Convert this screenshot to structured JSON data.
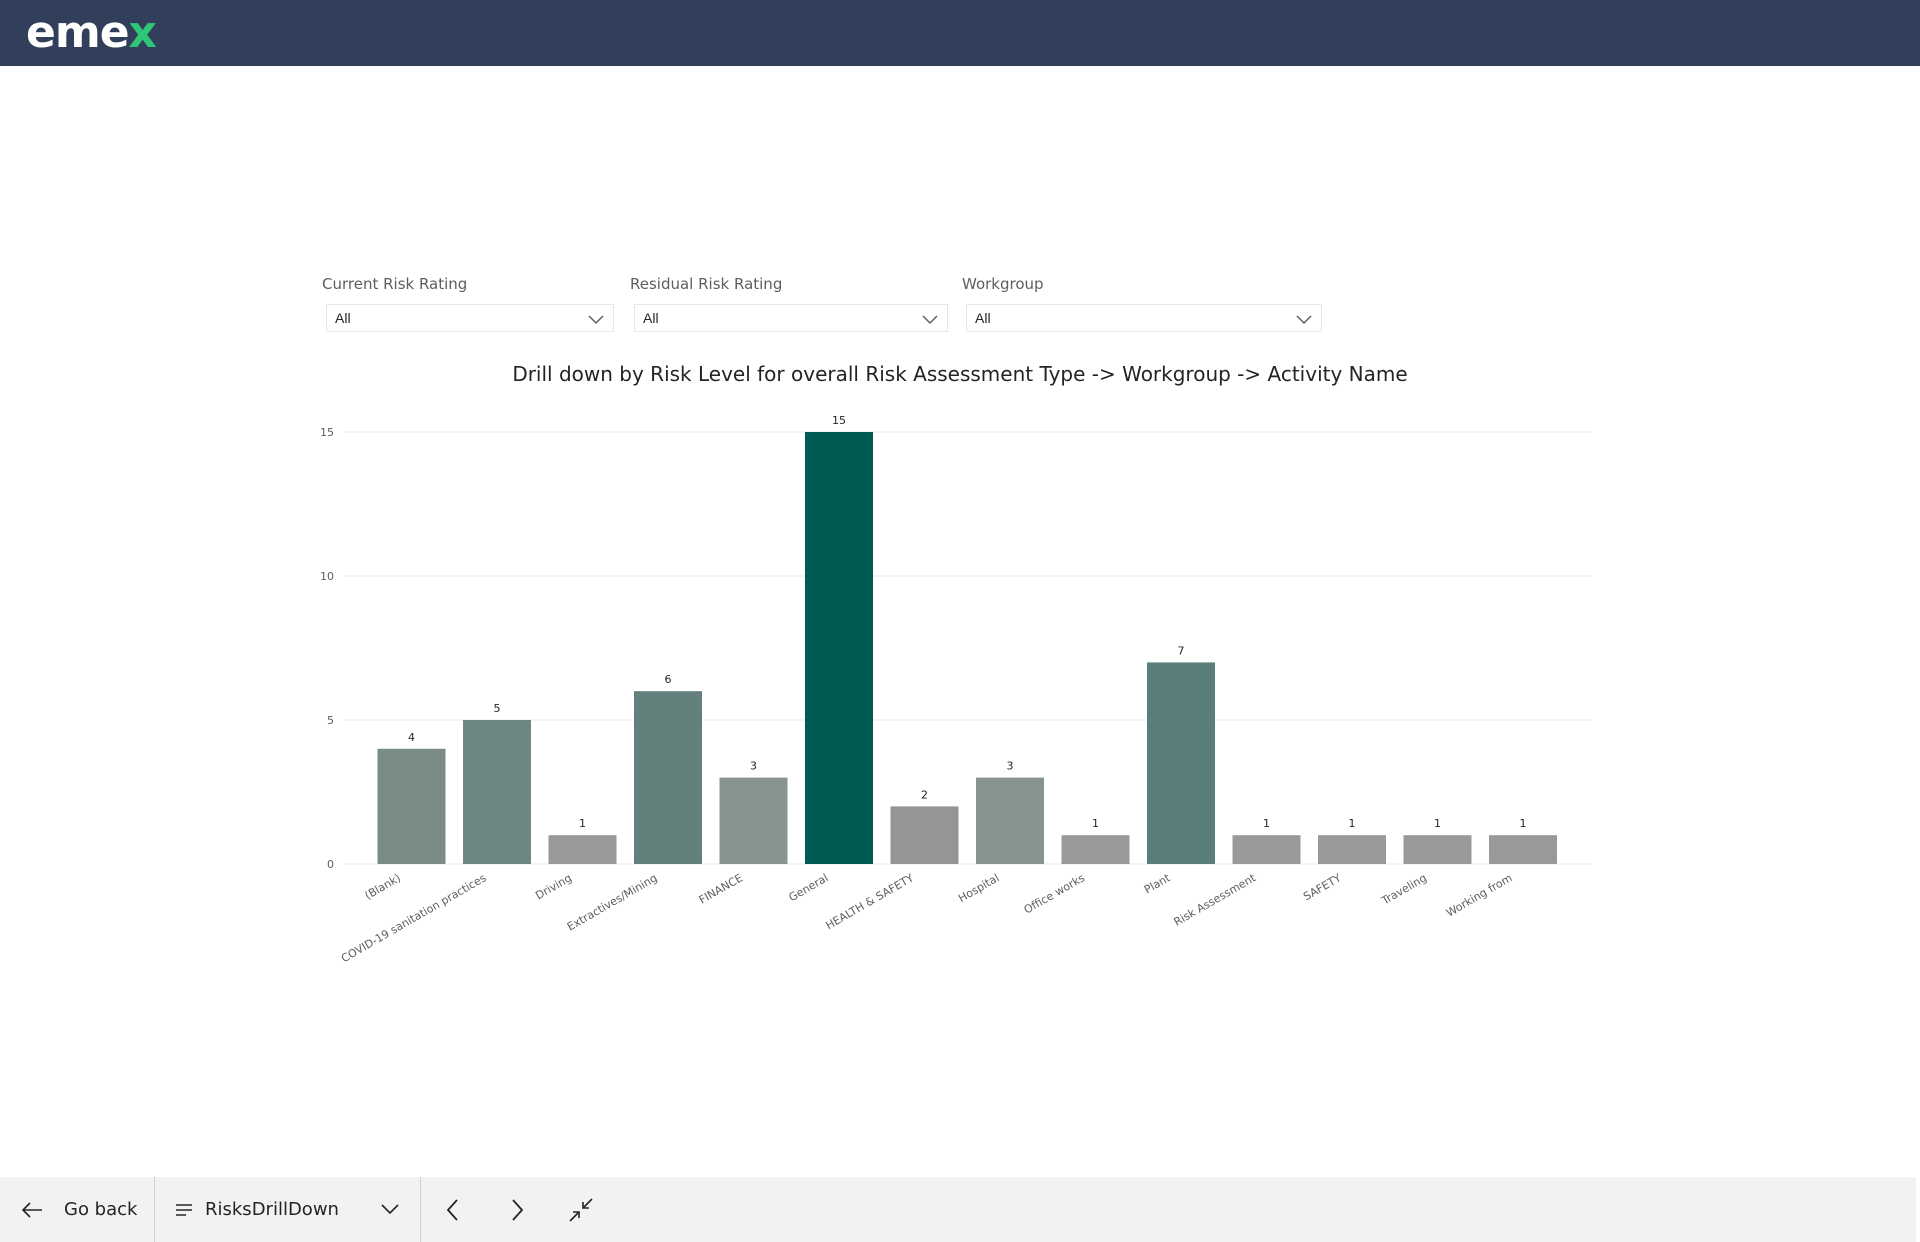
{
  "header": {
    "logo_main": "eme",
    "logo_accent": "x"
  },
  "filters": [
    {
      "label": "Current Risk Rating",
      "value": "All"
    },
    {
      "label": "Residual Risk Rating",
      "value": "All"
    },
    {
      "label": "Workgroup",
      "value": "All"
    }
  ],
  "chart_data": {
    "type": "bar",
    "title": "Drill down by Risk Level for overall Risk Assessment Type -> Workgroup -> Activity Name",
    "xlabel": "",
    "ylabel": "",
    "ylim": [
      0,
      15
    ],
    "yticks": [
      0,
      5,
      10,
      15
    ],
    "grid": true,
    "categories": [
      "(Blank)",
      "COVID-19 sanitation practices",
      "Driving",
      "Extractives/Mining",
      "FINANCE",
      "General",
      "HEALTH & SAFETY",
      "Hospital",
      "Office works",
      "Plant",
      "Risk Assessment",
      "SAFETY",
      "Traveling",
      "Working from"
    ],
    "values": [
      4,
      5,
      1,
      6,
      3,
      15,
      2,
      3,
      1,
      7,
      1,
      1,
      1,
      1
    ],
    "colors": [
      "#7b8c88",
      "#6e8783",
      "#999999",
      "#63807d",
      "#869391",
      "#005b52",
      "#939695",
      "#869391",
      "#999999",
      "#5a7f7b",
      "#999999",
      "#999999",
      "#999999",
      "#999999"
    ]
  },
  "footer": {
    "go_back": "Go back",
    "page_name": "RisksDrillDown",
    "icons": [
      "arrow-left-icon",
      "lines-icon",
      "chevron-down-icon",
      "chevron-left-icon",
      "chevron-right-icon",
      "collapse-icon"
    ]
  }
}
